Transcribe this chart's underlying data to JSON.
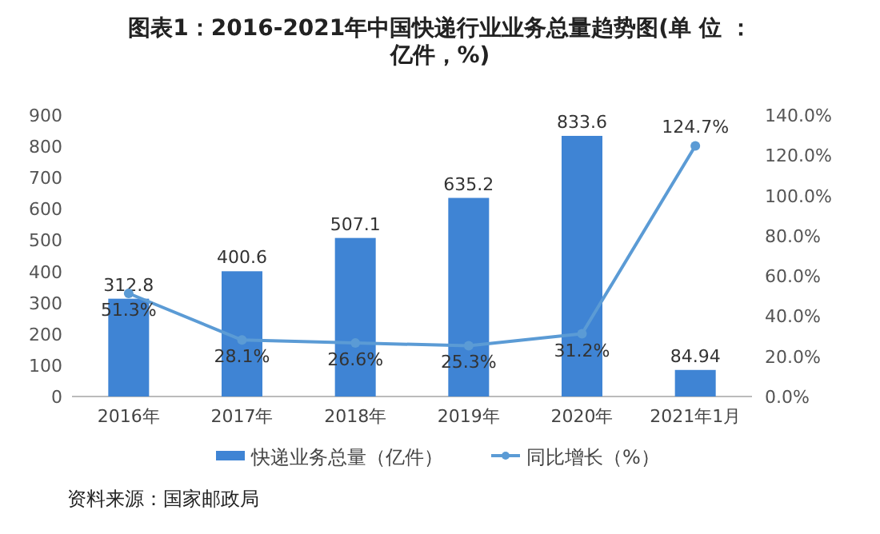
{
  "chart_data": {
    "type": "bar",
    "title": "图表1：2016-2021年中国快递行业业务总量趋势图(单 位 ：亿件，%)",
    "categories": [
      "2016年",
      "2017年",
      "2018年",
      "2019年",
      "2020年",
      "2021年1月"
    ],
    "series": [
      {
        "name": "快递业务总量（亿件）",
        "color": "#3f84d4",
        "values": [
          312.8,
          400.6,
          507.1,
          635.2,
          833.6,
          84.94
        ],
        "value_labels": [
          "312.8",
          "400.6",
          "507.1",
          "635.2",
          "833.6",
          "84.94"
        ]
      },
      {
        "name": "同比增长（%）",
        "type": "line",
        "axis": "y2",
        "color": "#5b9bd5",
        "marker": "circle",
        "values": [
          51.3,
          28.1,
          26.6,
          25.3,
          31.2,
          124.7
        ],
        "value_labels": [
          "51.3%",
          "28.1%",
          "26.6%",
          "25.3%",
          "31.2%",
          "124.7%"
        ]
      }
    ],
    "ylim": [
      0,
      900
    ],
    "yticks": [
      0,
      100,
      200,
      300,
      400,
      500,
      600,
      700,
      800,
      900
    ],
    "y2lim": [
      0,
      140
    ],
    "y2ticks": [
      {
        "value": 0,
        "label": "0.0%"
      },
      {
        "value": 20,
        "label": "20.0%"
      },
      {
        "value": 40,
        "label": "40.0%"
      },
      {
        "value": 60,
        "label": "60.0%"
      },
      {
        "value": 80,
        "label": "80.0%"
      },
      {
        "value": 100,
        "label": "100.0%"
      },
      {
        "value": 120,
        "label": "120.0%"
      },
      {
        "value": 140,
        "label": "140.0%"
      }
    ],
    "legend": "bottom",
    "annotations": [
      "资料来源：国家邮政局"
    ]
  }
}
